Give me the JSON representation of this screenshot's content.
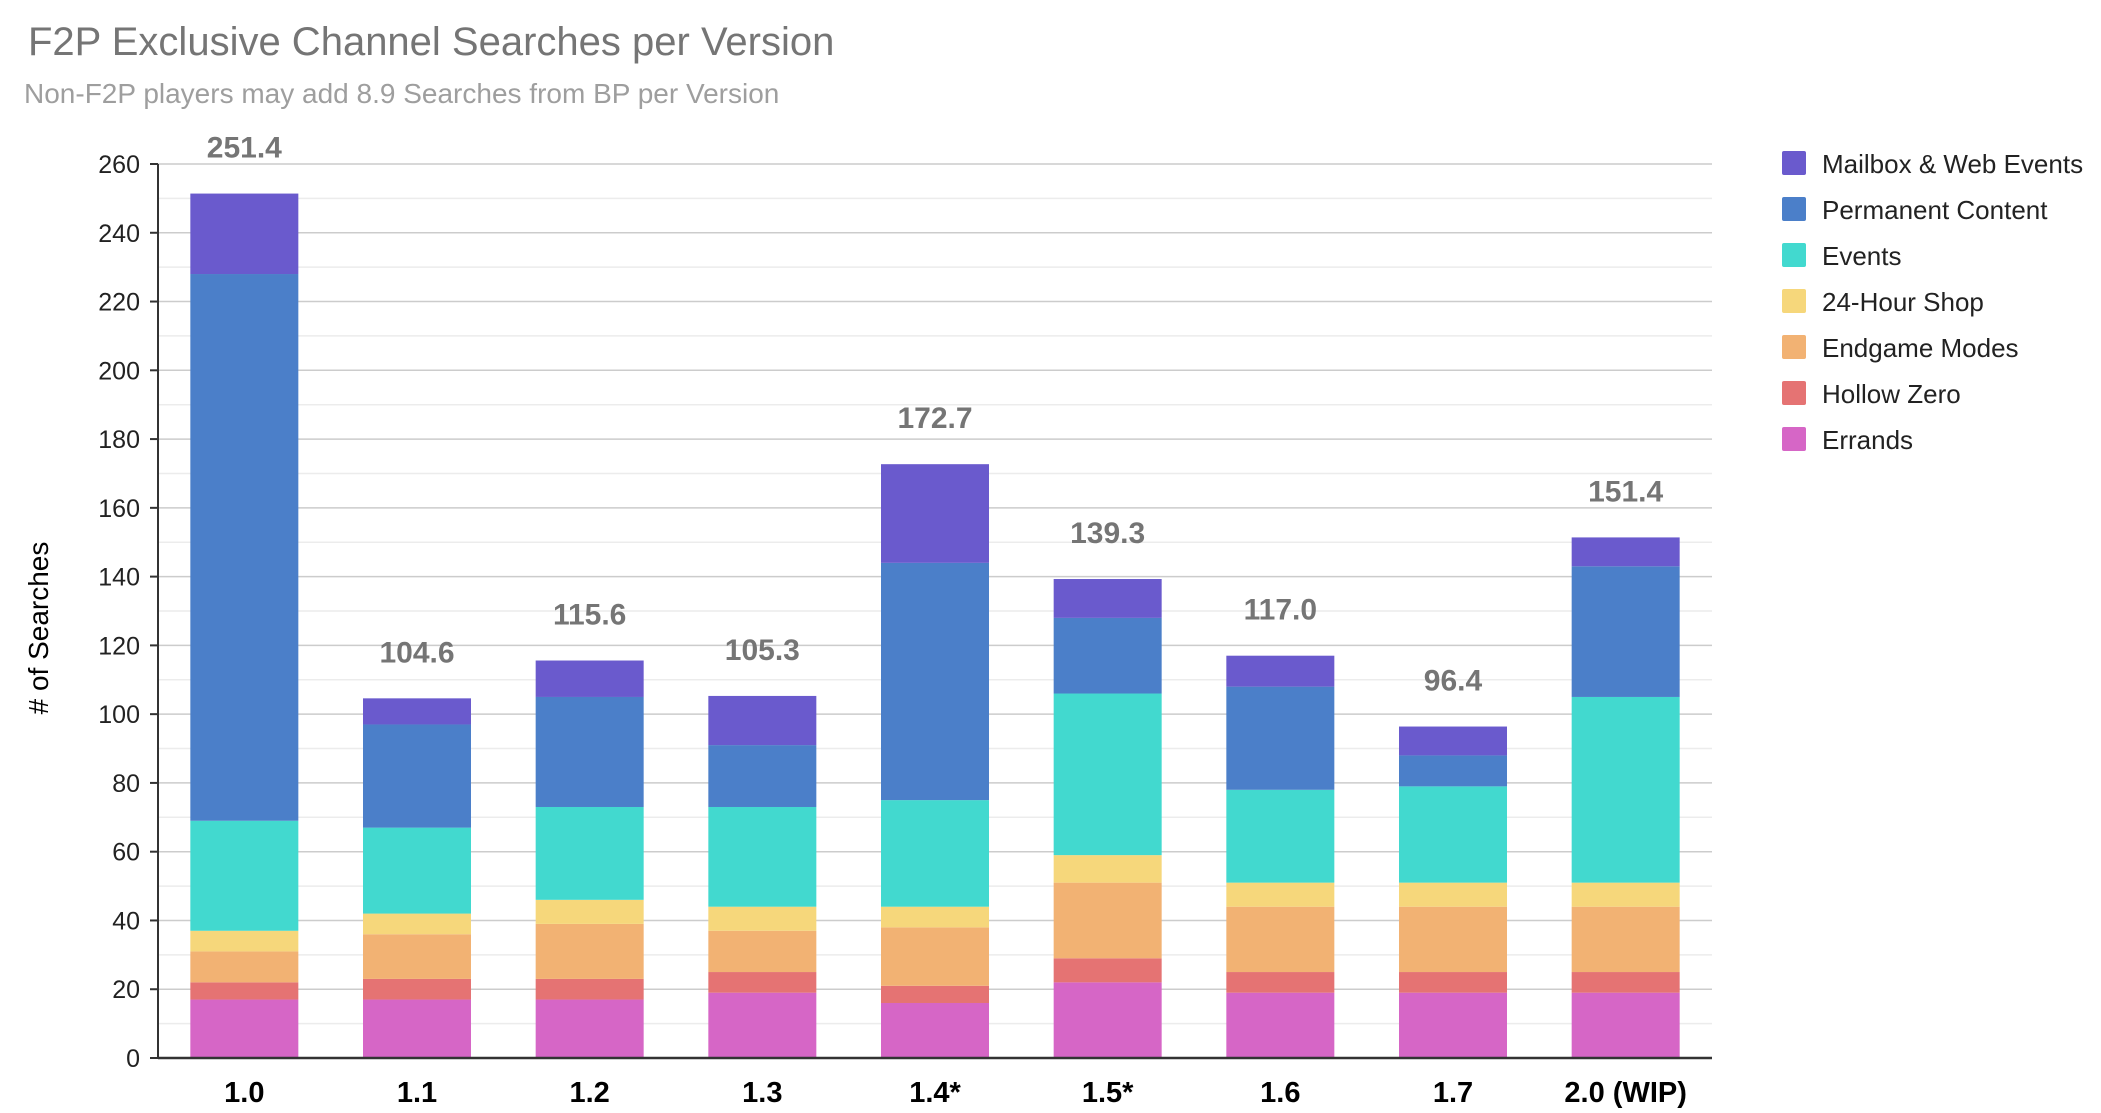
{
  "chart_data": {
    "type": "bar",
    "stacked": true,
    "title": "F2P Exclusive Channel Searches per Version",
    "subtitle": "Non-F2P players may add 8.9 Searches from BP per Version",
    "ylabel": "# of Searches",
    "xlabel": "",
    "ylim": [
      0,
      260
    ],
    "yticks": [
      0,
      20,
      40,
      60,
      80,
      100,
      120,
      140,
      160,
      180,
      200,
      220,
      240,
      260
    ],
    "grid": true,
    "legend_position": "right",
    "categories": [
      "1.0",
      "1.1",
      "1.2",
      "1.3",
      "1.4*",
      "1.5*",
      "1.6",
      "1.7",
      "2.0 (WIP)"
    ],
    "totals": [
      "251.4",
      "104.6",
      "115.6",
      "105.3",
      "172.7",
      "139.3",
      "117.0",
      "96.4",
      "151.4"
    ],
    "series": [
      {
        "name": "Errands",
        "color": "#d666c6",
        "values": [
          17,
          17,
          17,
          19,
          16,
          22,
          19,
          19,
          19
        ]
      },
      {
        "name": "Hollow Zero",
        "color": "#e57373",
        "values": [
          5,
          6,
          6,
          6,
          5,
          7,
          6,
          6,
          6
        ]
      },
      {
        "name": "Endgame Modes",
        "color": "#f2b273",
        "values": [
          9,
          13,
          16,
          12,
          17,
          22,
          19,
          19,
          19
        ]
      },
      {
        "name": "24-Hour Shop",
        "color": "#f6d77b",
        "values": [
          6,
          6,
          7,
          7,
          6,
          8,
          7,
          7,
          7
        ]
      },
      {
        "name": "Events",
        "color": "#42d9cf",
        "values": [
          32,
          25,
          27,
          29,
          31,
          47,
          27,
          28,
          54
        ]
      },
      {
        "name": "Permanent Content",
        "color": "#4b7fc9",
        "values": [
          159,
          30,
          32,
          18,
          69,
          22,
          30,
          9,
          38
        ]
      },
      {
        "name": "Mailbox & Web Events",
        "color": "#6a5acd",
        "values": [
          23.4,
          7.6,
          10.6,
          14.3,
          28.7,
          11.3,
          9,
          8.4,
          8.4
        ]
      }
    ]
  }
}
